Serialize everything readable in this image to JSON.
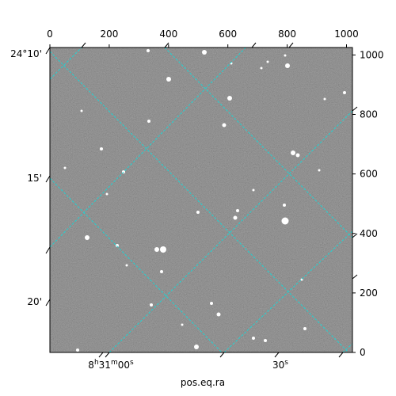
{
  "figure": {
    "pixel_axis_top_ticks": [
      "0",
      "200",
      "400",
      "600",
      "800",
      "1000"
    ],
    "pixel_axis_right_ticks": [
      "0",
      "200",
      "400",
      "600",
      "800",
      "1000"
    ],
    "dec_ticks": [
      "24°10'",
      "15'",
      "20'"
    ],
    "ra_ticks": [
      {
        "base": "8",
        "h": "h",
        "mid": "31",
        "m": "m",
        "sec": "00",
        "s": "s"
      },
      {
        "base": "30",
        "s": "s"
      }
    ],
    "xlabel": "pos.eq.ra"
  },
  "colors": {
    "background": "#ffffff",
    "sky": "#6f6f6f",
    "grid": "#1fd3d3",
    "axis": "#000000",
    "star": "#ffffff"
  }
}
